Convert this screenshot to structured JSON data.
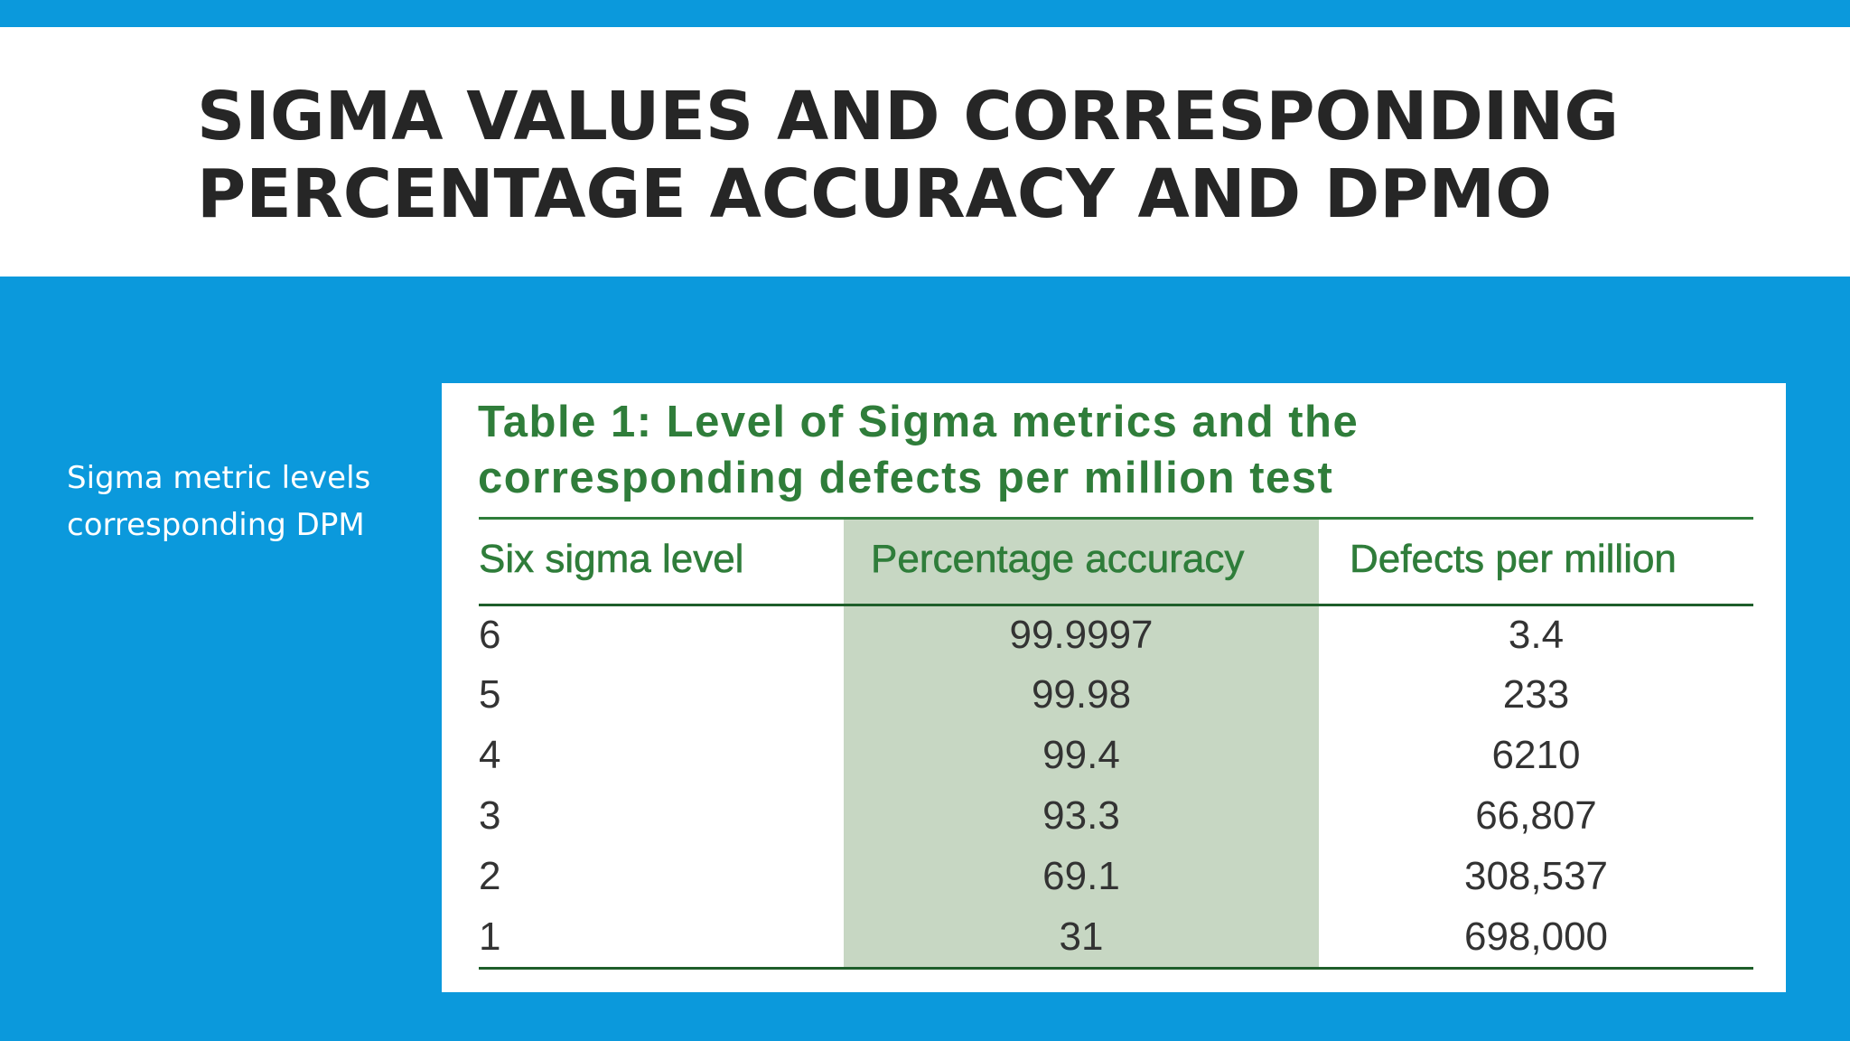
{
  "slide": {
    "title_lines": [
      "SIGMA VALUES AND CORRESPONDING",
      "PERCENTAGE ACCURACY AND DPMO"
    ],
    "side_text_lines": [
      "Sigma metric levels",
      "corresponding DPM"
    ],
    "colors": {
      "background": "#0b99dc",
      "title_band": "#ffffff",
      "title_text": "#262626",
      "table_green": "#2f7d3a",
      "shaded_column": "#c7d7c3"
    }
  },
  "table": {
    "caption_lines": [
      "Table 1: Level of Sigma metrics and the",
      "corresponding defects per million test"
    ],
    "headers": {
      "level": "Six sigma level",
      "accuracy": "Percentage accuracy",
      "dpm": "Defects per million"
    },
    "rows": [
      {
        "level": "6",
        "accuracy": "99.9997",
        "dpm": "3.4"
      },
      {
        "level": "5",
        "accuracy": "99.98",
        "dpm": "233"
      },
      {
        "level": "4",
        "accuracy": "99.4",
        "dpm": "6210"
      },
      {
        "level": "3",
        "accuracy": "93.3",
        "dpm": "66,807"
      },
      {
        "level": "2",
        "accuracy": "69.1",
        "dpm": "308,537"
      },
      {
        "level": "1",
        "accuracy": "31",
        "dpm": "698,000"
      }
    ]
  }
}
